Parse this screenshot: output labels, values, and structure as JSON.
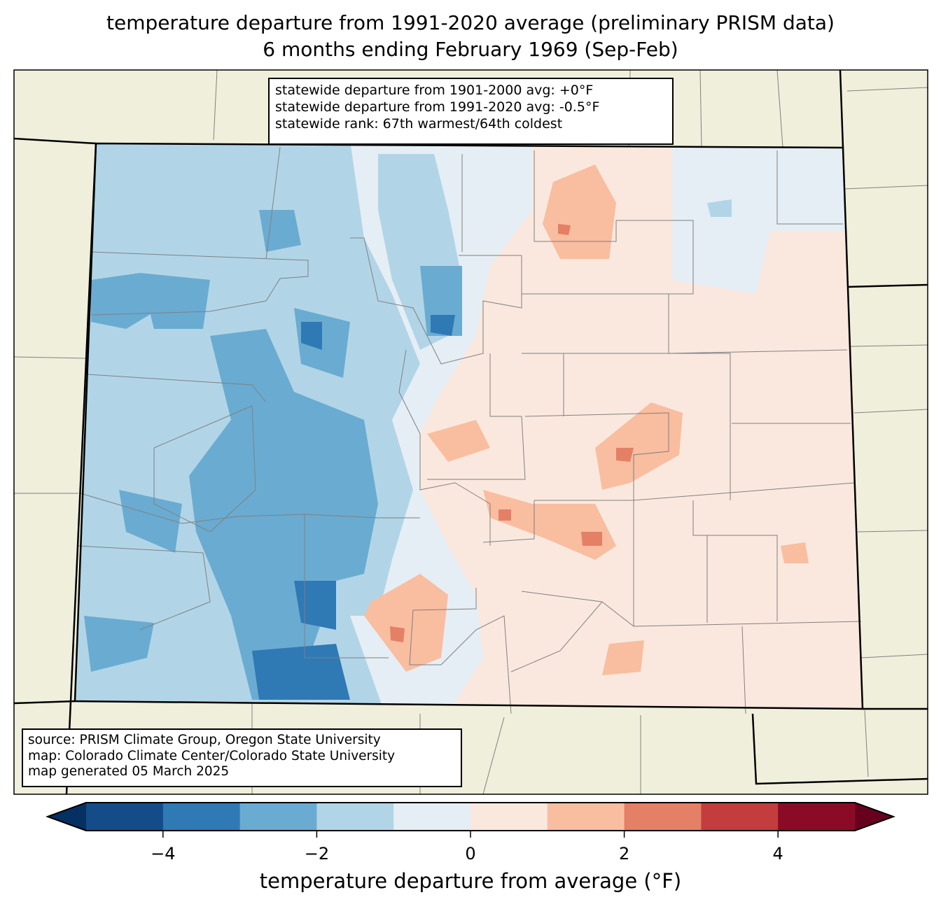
{
  "title": {
    "line1": "temperature departure from 1991-2020 average (preliminary PRISM data)",
    "line2": "6 months ending February 1969 (Sep-Feb)"
  },
  "stats_box": {
    "line1": "statewide departure from 1901-2000 avg: +0°F",
    "line2": "statewide departure from 1991-2020 avg: -0.5°F",
    "line3": "statewide rank: 67th warmest/64th coldest"
  },
  "source_box": {
    "line1": "source: PRISM Climate Group, Oregon State University",
    "line2": "map: Colorado Climate Center/Colorado State University",
    "line3": "map generated 05 March 2025"
  },
  "colorbar": {
    "label": "temperature departure from average (°F)",
    "range": [
      -5,
      5
    ],
    "levels": [
      -5,
      -4,
      -3,
      -2,
      -1,
      0,
      1,
      2,
      3,
      4,
      5
    ],
    "colors": [
      "#134c88",
      "#2f79b5",
      "#6aabd1",
      "#b1d5e7",
      "#e5eef5",
      "#fae8de",
      "#f9bda0",
      "#e48066",
      "#c33c3e",
      "#8b0b26"
    ],
    "extend_low_color": "#053061",
    "extend_high_color": "#67001f",
    "ticks": [
      -4,
      -2,
      0,
      2,
      4
    ],
    "tick_labels": [
      "−4",
      "−2",
      "0",
      "2",
      "4"
    ]
  },
  "colors": {
    "land": "#f0efdc",
    "county_lines": "#808080"
  }
}
